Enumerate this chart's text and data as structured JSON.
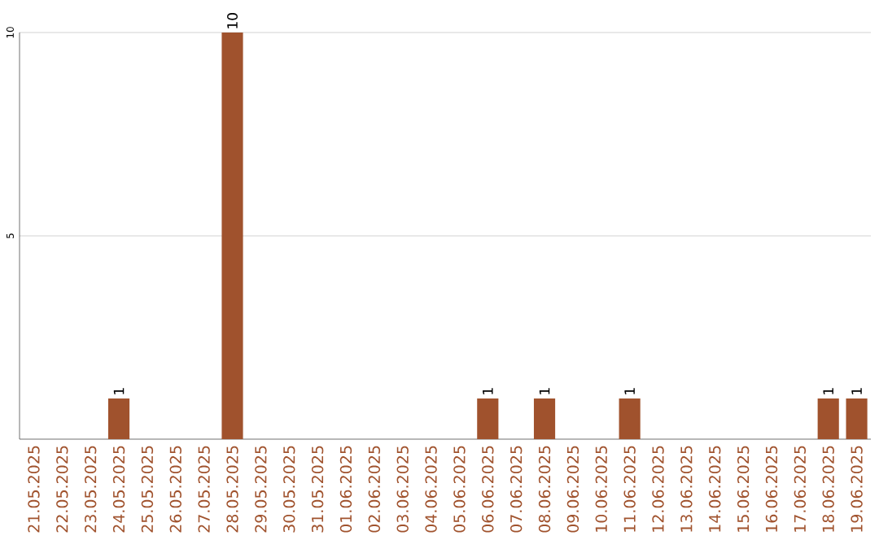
{
  "chart_data": {
    "type": "bar",
    "categories": [
      "21.05.2025",
      "22.05.2025",
      "23.05.2025",
      "24.05.2025",
      "25.05.2025",
      "26.05.2025",
      "27.05.2025",
      "28.05.2025",
      "29.05.2025",
      "30.05.2025",
      "31.05.2025",
      "01.06.2025",
      "02.06.2025",
      "03.06.2025",
      "04.06.2025",
      "05.06.2025",
      "06.06.2025",
      "07.06.2025",
      "08.06.2025",
      "09.06.2025",
      "10.06.2025",
      "11.06.2025",
      "12.06.2025",
      "13.06.2025",
      "14.06.2025",
      "15.06.2025",
      "16.06.2025",
      "17.06.2025",
      "18.06.2025",
      "19.06.2025"
    ],
    "values": [
      0,
      0,
      0,
      1,
      0,
      0,
      0,
      10,
      0,
      0,
      0,
      0,
      0,
      0,
      0,
      0,
      1,
      0,
      1,
      0,
      0,
      1,
      0,
      0,
      0,
      0,
      0,
      0,
      1,
      1
    ],
    "value_labels": [
      null,
      null,
      null,
      "1",
      null,
      null,
      null,
      "10",
      null,
      null,
      null,
      null,
      null,
      null,
      null,
      null,
      "1",
      null,
      "1",
      null,
      null,
      "1",
      null,
      null,
      null,
      null,
      null,
      null,
      "1",
      "1"
    ],
    "color": "#a0522d",
    "ylim": [
      0,
      10
    ],
    "yticks": [
      5,
      10
    ],
    "grid": "y"
  }
}
